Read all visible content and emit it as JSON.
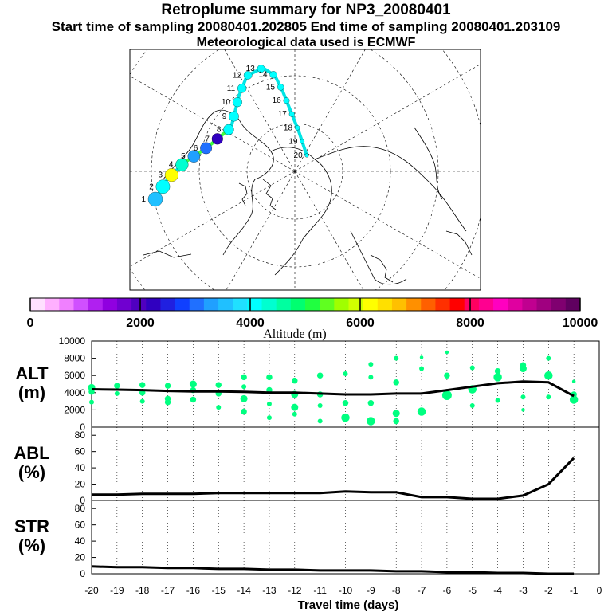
{
  "header": {
    "title": "Retroplume summary for NP3_20080401",
    "times": "Start time of sampling 20080401.202805     End time of sampling 20080401.203109",
    "met": "Meteorological data used is ECMWF"
  },
  "colors": {
    "ground": "#00ff80",
    "line": "#000000",
    "plume": "#00e5e5"
  },
  "colorbar": {
    "label": "Altitude (m)",
    "min": 0,
    "max": 10000,
    "ticks": [
      "0",
      "2000",
      "4000",
      "6000",
      "8000",
      "10000"
    ],
    "colors": [
      "#ffe0ff",
      "#ffb0ff",
      "#f080ff",
      "#d050ff",
      "#b020f0",
      "#9000e0",
      "#7000d0",
      "#5000c0",
      "#3000c0",
      "#2020e0",
      "#1040ff",
      "#2070ff",
      "#20a0ff",
      "#20c0ff",
      "#20e0ff",
      "#00ffff",
      "#00ffd0",
      "#00ffa0",
      "#00ff70",
      "#20ff40",
      "#60ff20",
      "#a0ff00",
      "#d0ff00",
      "#ffff00",
      "#ffe000",
      "#ffc000",
      "#ff9000",
      "#ff6000",
      "#ff3000",
      "#ff0000",
      "#ff0060",
      "#ff0090",
      "#ff00c0",
      "#e000a0",
      "#c00090",
      "#a00080",
      "#800070",
      "#600060"
    ]
  },
  "map": {
    "plume_points": [
      {
        "label": "1",
        "day": 1,
        "alt": 3500
      },
      {
        "label": "2",
        "day": 2,
        "alt": 4200
      },
      {
        "label": "3",
        "day": 3,
        "alt": 6200
      },
      {
        "label": "4",
        "day": 4,
        "alt": 4300
      },
      {
        "label": "5",
        "day": 5,
        "alt": 3400
      },
      {
        "label": "6",
        "day": 6,
        "alt": 3100
      },
      {
        "label": "7",
        "day": 7,
        "alt": 2300
      },
      {
        "label": "8",
        "day": 8,
        "alt": 4000
      },
      {
        "label": "9",
        "day": 9,
        "alt": 4000
      },
      {
        "label": "10",
        "day": 10,
        "alt": 4000
      },
      {
        "label": "11",
        "day": 11,
        "alt": 4000
      },
      {
        "label": "12",
        "day": 12,
        "alt": 4000
      },
      {
        "label": "13",
        "day": 13,
        "alt": 4000
      },
      {
        "label": "14",
        "day": 14,
        "alt": 4000
      },
      {
        "label": "15",
        "day": 15,
        "alt": 4000
      },
      {
        "label": "16",
        "day": 16,
        "alt": 4000
      },
      {
        "label": "17",
        "day": 17,
        "alt": 4000
      },
      {
        "label": "18",
        "day": 18,
        "alt": 4000
      },
      {
        "label": "19",
        "day": 19,
        "alt": 4000
      },
      {
        "label": "20",
        "day": 20,
        "alt": 4000
      }
    ]
  },
  "chart_data": [
    {
      "type": "line",
      "name": "ALT",
      "ylabel": "ALT\n(m)",
      "ylabel_lines": [
        "ALT",
        "(m)"
      ],
      "ylim": [
        0,
        10000
      ],
      "yticks": [
        "0",
        "2000",
        "4000",
        "6000",
        "8000",
        "10000"
      ],
      "x": [
        -20,
        -19,
        -18,
        -17,
        -16,
        -15,
        -14,
        -13,
        -12,
        -11,
        -10,
        -9,
        -8,
        -7,
        -6,
        -5,
        -4,
        -3,
        -2,
        -1
      ],
      "values": [
        4400,
        4350,
        4300,
        4200,
        4150,
        4150,
        4100,
        4000,
        4000,
        3900,
        3800,
        3800,
        3900,
        3900,
        4300,
        4700,
        5100,
        5300,
        5200,
        3600
      ],
      "cluster_points": [
        {
          "x": -20,
          "y": 4600,
          "s": 6
        },
        {
          "x": -20,
          "y": 4100,
          "s": 5
        },
        {
          "x": -20,
          "y": 2900,
          "s": 4
        },
        {
          "x": -19,
          "y": 4800,
          "s": 5
        },
        {
          "x": -19,
          "y": 3900,
          "s": 4
        },
        {
          "x": -18,
          "y": 4900,
          "s": 5
        },
        {
          "x": -18,
          "y": 4000,
          "s": 5
        },
        {
          "x": -18,
          "y": 3000,
          "s": 4
        },
        {
          "x": -17,
          "y": 4800,
          "s": 5
        },
        {
          "x": -17,
          "y": 3300,
          "s": 5
        },
        {
          "x": -17,
          "y": 2900,
          "s": 5
        },
        {
          "x": -16,
          "y": 5000,
          "s": 6
        },
        {
          "x": -16,
          "y": 4300,
          "s": 5
        },
        {
          "x": -16,
          "y": 3200,
          "s": 5
        },
        {
          "x": -15,
          "y": 4900,
          "s": 5
        },
        {
          "x": -15,
          "y": 3900,
          "s": 5
        },
        {
          "x": -15,
          "y": 2300,
          "s": 4
        },
        {
          "x": -14,
          "y": 5800,
          "s": 5
        },
        {
          "x": -14,
          "y": 4700,
          "s": 4
        },
        {
          "x": -14,
          "y": 3300,
          "s": 6
        },
        {
          "x": -14,
          "y": 1800,
          "s": 5
        },
        {
          "x": -13,
          "y": 5800,
          "s": 5
        },
        {
          "x": -13,
          "y": 4300,
          "s": 5
        },
        {
          "x": -13,
          "y": 2700,
          "s": 4
        },
        {
          "x": -13,
          "y": 1100,
          "s": 4
        },
        {
          "x": -12,
          "y": 5400,
          "s": 5
        },
        {
          "x": -12,
          "y": 3800,
          "s": 6
        },
        {
          "x": -12,
          "y": 2300,
          "s": 6
        },
        {
          "x": -12,
          "y": 1500,
          "s": 4
        },
        {
          "x": -11,
          "y": 6000,
          "s": 5
        },
        {
          "x": -11,
          "y": 3800,
          "s": 5
        },
        {
          "x": -11,
          "y": 2500,
          "s": 4
        },
        {
          "x": -11,
          "y": 700,
          "s": 4
        },
        {
          "x": -10,
          "y": 6200,
          "s": 4
        },
        {
          "x": -10,
          "y": 2800,
          "s": 5
        },
        {
          "x": -10,
          "y": 1100,
          "s": 7
        },
        {
          "x": -9,
          "y": 7300,
          "s": 4
        },
        {
          "x": -9,
          "y": 5800,
          "s": 4
        },
        {
          "x": -9,
          "y": 2800,
          "s": 5
        },
        {
          "x": -9,
          "y": 700,
          "s": 7
        },
        {
          "x": -8,
          "y": 8000,
          "s": 4
        },
        {
          "x": -8,
          "y": 5200,
          "s": 5
        },
        {
          "x": -8,
          "y": 1600,
          "s": 6
        },
        {
          "x": -8,
          "y": 700,
          "s": 5
        },
        {
          "x": -7,
          "y": 8100,
          "s": 3
        },
        {
          "x": -7,
          "y": 6800,
          "s": 4
        },
        {
          "x": -7,
          "y": 1800,
          "s": 7
        },
        {
          "x": -6,
          "y": 8700,
          "s": 3
        },
        {
          "x": -6,
          "y": 6000,
          "s": 5
        },
        {
          "x": -6,
          "y": 3700,
          "s": 8
        },
        {
          "x": -5,
          "y": 6900,
          "s": 4
        },
        {
          "x": -5,
          "y": 4400,
          "s": 7
        },
        {
          "x": -5,
          "y": 2500,
          "s": 4
        },
        {
          "x": -4,
          "y": 6500,
          "s": 5
        },
        {
          "x": -4,
          "y": 5800,
          "s": 7
        },
        {
          "x": -4,
          "y": 3100,
          "s": 4
        },
        {
          "x": -3,
          "y": 7200,
          "s": 5
        },
        {
          "x": -3,
          "y": 6800,
          "s": 6
        },
        {
          "x": -3,
          "y": 3500,
          "s": 4
        },
        {
          "x": -3,
          "y": 2000,
          "s": 3
        },
        {
          "x": -2,
          "y": 8000,
          "s": 4
        },
        {
          "x": -2,
          "y": 6000,
          "s": 7
        },
        {
          "x": -2,
          "y": 3500,
          "s": 4
        },
        {
          "x": -1,
          "y": 5300,
          "s": 3
        },
        {
          "x": -1,
          "y": 3800,
          "s": 5
        },
        {
          "x": -1,
          "y": 3200,
          "s": 7
        }
      ]
    },
    {
      "type": "line",
      "name": "ABL",
      "ylabel": "ABL\n(%)",
      "ylabel_lines": [
        "ABL",
        "(%)"
      ],
      "ylim": [
        0,
        90
      ],
      "yticks": [
        "0",
        "20",
        "40",
        "60",
        "80"
      ],
      "x": [
        -20,
        -19,
        -18,
        -17,
        -16,
        -15,
        -14,
        -13,
        -12,
        -11,
        -10,
        -9,
        -8,
        -7,
        -6,
        -5,
        -4,
        -3,
        -2,
        -1
      ],
      "values": [
        7,
        7,
        8,
        8,
        8,
        9,
        9,
        9,
        9,
        9,
        11,
        10,
        10,
        4,
        4,
        2,
        2,
        6,
        20,
        52
      ]
    },
    {
      "type": "line",
      "name": "STR",
      "ylabel": "STR\n(%)",
      "ylabel_lines": [
        "STR",
        "(%)"
      ],
      "ylim": [
        0,
        90
      ],
      "yticks": [
        "0",
        "20",
        "40",
        "60",
        "80"
      ],
      "x": [
        -20,
        -19,
        -18,
        -17,
        -16,
        -15,
        -14,
        -13,
        -12,
        -11,
        -10,
        -9,
        -8,
        -7,
        -6,
        -5,
        -4,
        -3,
        -2,
        -1
      ],
      "values": [
        9,
        8,
        8,
        7,
        7,
        6,
        6,
        5,
        5,
        4,
        4,
        4,
        3,
        3,
        2,
        2,
        1,
        1,
        0,
        0
      ],
      "xlabel": "Travel time (days)",
      "xticks": [
        "-20",
        "-19",
        "-18",
        "-17",
        "-16",
        "-15",
        "-14",
        "-13",
        "-12",
        "-11",
        "-10",
        "-9",
        "-8",
        "-7",
        "-6",
        "-5",
        "-4",
        "-3",
        "-2",
        "-1",
        "0"
      ]
    }
  ]
}
